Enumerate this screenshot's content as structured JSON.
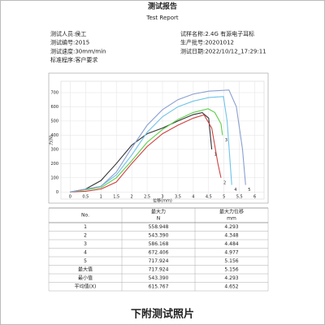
{
  "header": {
    "title": "测试报告",
    "subtitle": "Test Report"
  },
  "info": {
    "left": [
      "测试人员:侯工",
      "测试编号:2015",
      "测试速度:30mm/min",
      "标准程序:客户要求"
    ],
    "right": [
      "试样名称:2.4G 有源电子耳标",
      "生产批号:20201012",
      "测试日期:2022/10/12_17:29:11"
    ]
  },
  "chart": {
    "type": "line",
    "xlabel": "位移(mm)",
    "ylabel": "力(N)",
    "xlim": [
      -0.3,
      6.3
    ],
    "ylim": [
      -50,
      780
    ],
    "xticks": [
      0,
      0.5,
      1,
      1.5,
      2,
      2.5,
      3,
      3.5,
      4,
      4.5,
      5,
      5.5,
      6
    ],
    "yticks": [
      0,
      100,
      200,
      300,
      400,
      500,
      600,
      700
    ],
    "grid": true,
    "series": [
      {
        "name": "1",
        "color": "#333333",
        "x": [
          0,
          0.5,
          1,
          1.5,
          2,
          2.5,
          3,
          3.5,
          4,
          4.29,
          4.5,
          4.6
        ],
        "y": [
          0,
          20,
          80,
          200,
          330,
          410,
          450,
          500,
          545,
          559,
          520,
          300
        ]
      },
      {
        "name": "2",
        "color": "#d04040",
        "x": [
          0,
          0.5,
          1,
          1.5,
          2,
          2.5,
          3,
          3.5,
          4,
          4.35,
          4.6,
          4.8,
          4.9
        ],
        "y": [
          0,
          5,
          20,
          70,
          200,
          320,
          410,
          470,
          520,
          543,
          450,
          200,
          100
        ]
      },
      {
        "name": "3",
        "color": "#5ccf4a",
        "x": [
          0,
          1,
          1.5,
          2,
          2.5,
          3,
          3.5,
          4,
          4.48,
          4.7,
          4.9,
          4.95
        ],
        "y": [
          0,
          30,
          100,
          220,
          350,
          440,
          510,
          560,
          586,
          560,
          480,
          400
        ]
      },
      {
        "name": "4",
        "color": "#6fc3e8",
        "x": [
          0,
          1,
          1.5,
          2,
          2.5,
          3,
          3.5,
          4,
          4.5,
          4.98,
          5.1,
          5.2,
          5.25
        ],
        "y": [
          0,
          40,
          120,
          260,
          420,
          530,
          600,
          640,
          665,
          672,
          500,
          200,
          50
        ]
      },
      {
        "name": "5",
        "color": "#8a9fd0",
        "x": [
          0,
          1,
          1.5,
          2,
          2.5,
          3,
          3.5,
          4,
          4.5,
          5.16,
          5.4,
          5.6,
          5.7
        ],
        "y": [
          0,
          40,
          140,
          310,
          470,
          580,
          650,
          690,
          710,
          718,
          600,
          300,
          50
        ]
      }
    ]
  },
  "table": {
    "header": [
      [
        "No."
      ],
      [
        "最大力",
        "N"
      ],
      [
        "最大力位移",
        "mm"
      ]
    ],
    "rows": [
      [
        "1",
        "558.948",
        "4.293"
      ],
      [
        "2",
        "543.390",
        "4.348"
      ],
      [
        "3",
        "586.168",
        "4.484"
      ],
      [
        "4",
        "672.406",
        "4.977"
      ],
      [
        "5",
        "717.924",
        "5.156"
      ],
      [
        "最大值",
        "717.924",
        "5.156"
      ],
      [
        "最小值",
        "543.390",
        "4.293"
      ],
      [
        "平均值(X)",
        "615.767",
        "4.652"
      ]
    ]
  },
  "footer": "下附测试照片"
}
